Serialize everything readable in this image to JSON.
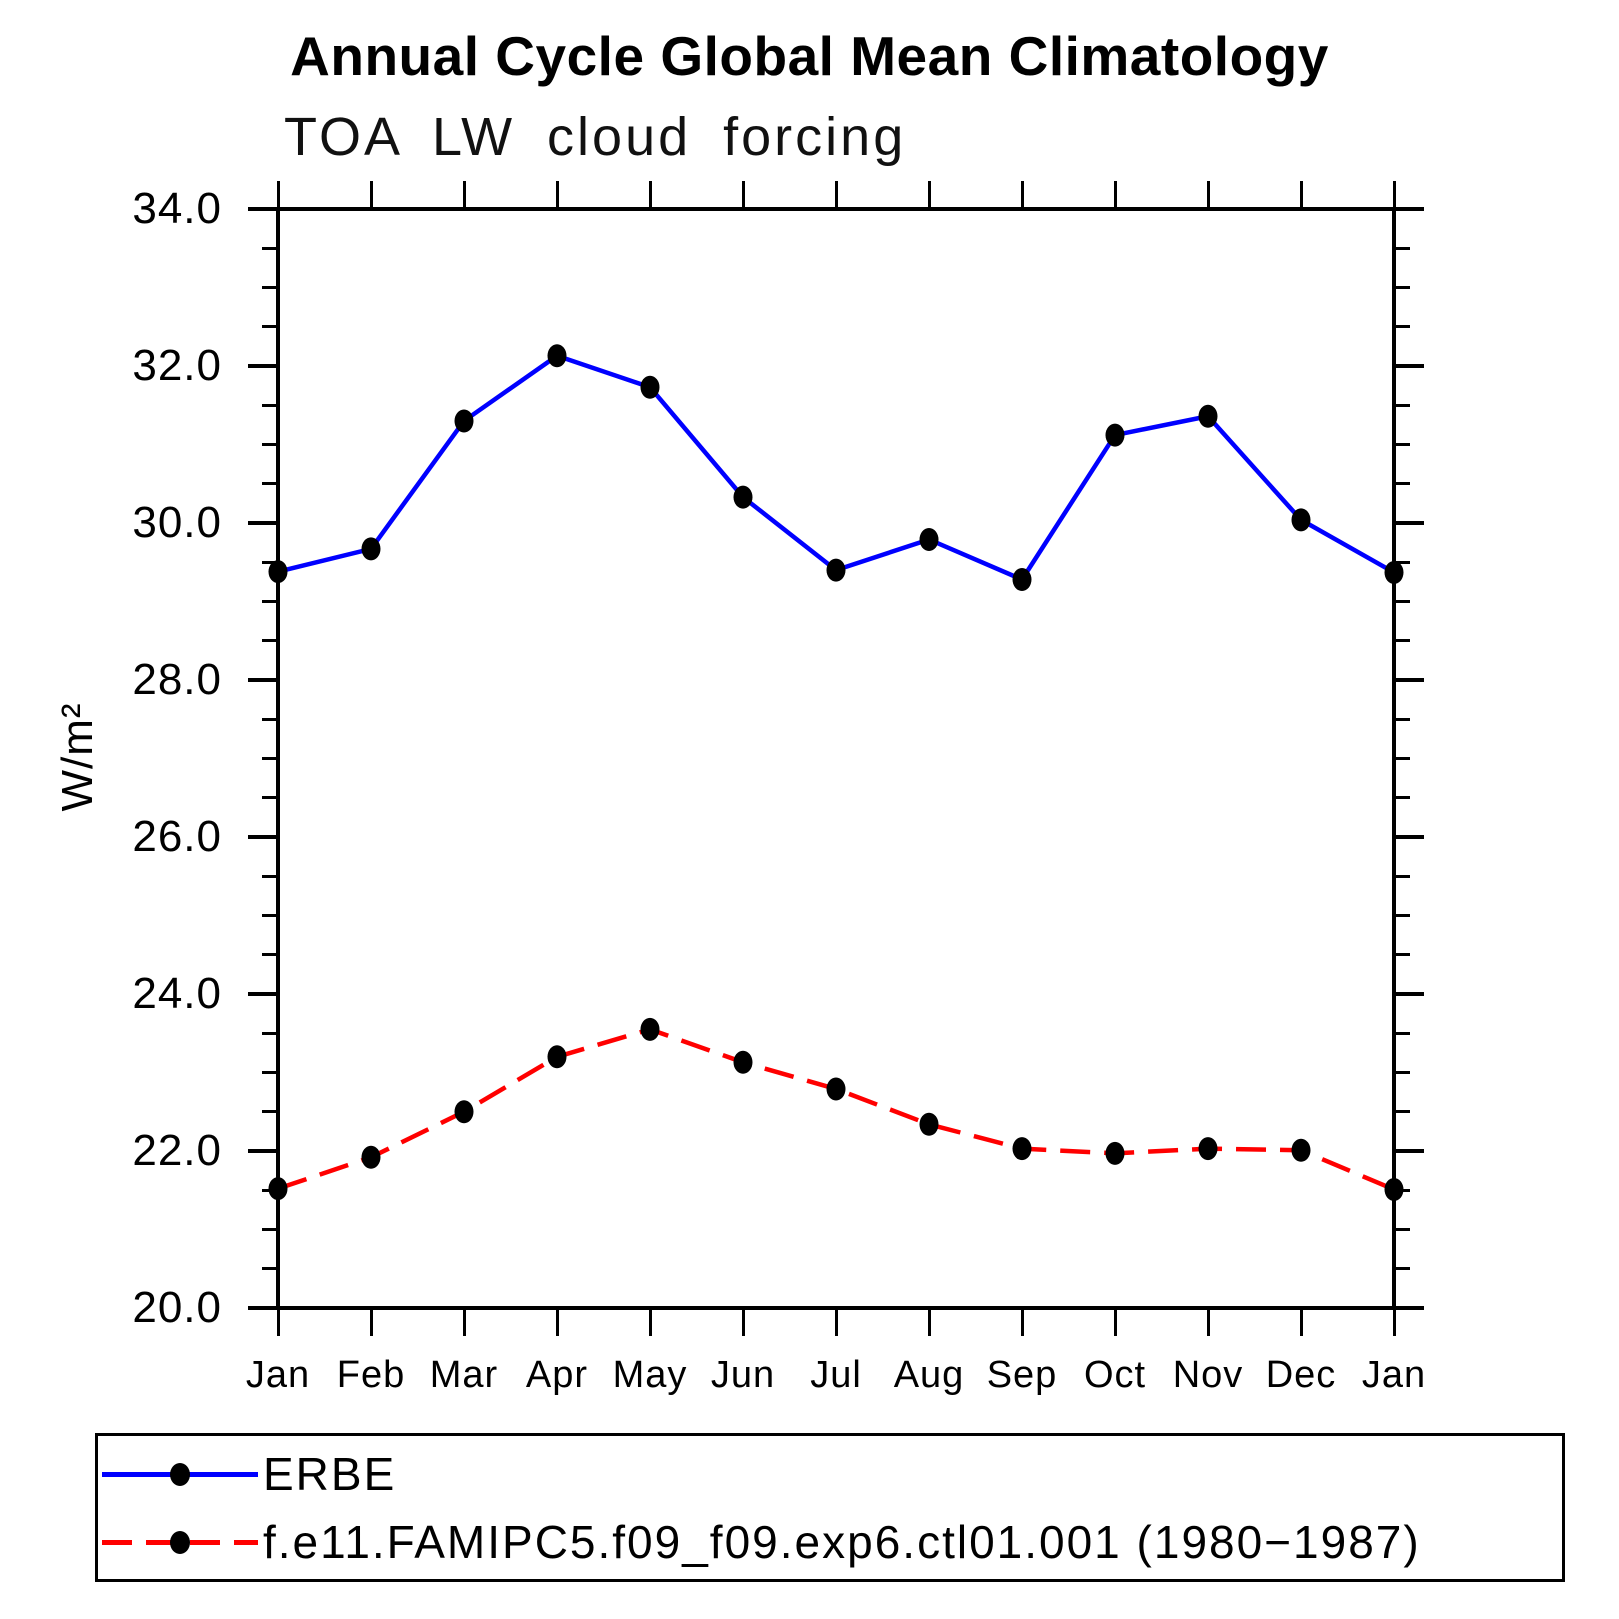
{
  "title": "Annual Cycle Global Mean Climatology",
  "subtitle": "TOA LW cloud forcing",
  "chart_data": {
    "type": "line",
    "title": "Annual Cycle Global Mean Climatology",
    "subtitle": "TOA LW cloud forcing",
    "categories": [
      "Jan",
      "Feb",
      "Mar",
      "Apr",
      "May",
      "Jun",
      "Jul",
      "Aug",
      "Sep",
      "Oct",
      "Nov",
      "Dec",
      "Jan"
    ],
    "series": [
      {
        "name": "ERBE",
        "color": "#0000ff",
        "line_style": "solid",
        "values": [
          29.38,
          29.67,
          31.3,
          32.13,
          31.73,
          30.33,
          29.4,
          29.79,
          29.28,
          31.12,
          31.36,
          30.04,
          29.37
        ]
      },
      {
        "name": "f.e11.FAMIPC5.f09_f09.exp6.ctl01.001 (1980−1987)",
        "color": "#ff0000",
        "line_style": "dashed",
        "values": [
          21.52,
          21.92,
          22.5,
          23.2,
          23.55,
          23.13,
          22.79,
          22.34,
          22.03,
          21.97,
          22.03,
          22.01,
          21.51
        ]
      }
    ],
    "xlabel": "",
    "ylabel": "W/m²",
    "ylim": [
      20.0,
      34.0
    ],
    "ytick_labels": [
      "20.0",
      "22.0",
      "24.0",
      "26.0",
      "28.0",
      "30.0",
      "32.0",
      "34.0"
    ],
    "y_minor_step": 0.5,
    "marker": "filled-circle",
    "marker_color": "#000000",
    "grid": false,
    "legend_position": "bottom-box"
  }
}
